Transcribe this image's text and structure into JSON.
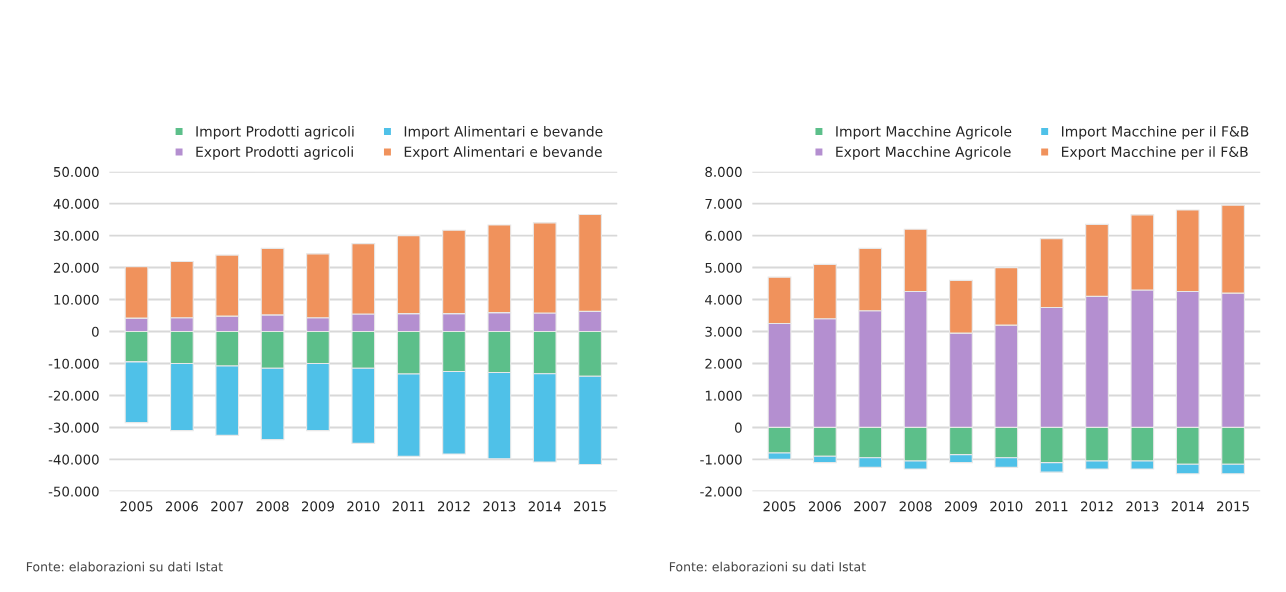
{
  "chart_data": [
    {
      "type": "bar",
      "stacked": true,
      "categories": [
        "2005",
        "2006",
        "2007",
        "2008",
        "2009",
        "2010",
        "2011",
        "2012",
        "2013",
        "2014",
        "2015"
      ],
      "series": [
        {
          "name": "Import Prodotti agricoli",
          "color": "#5cbf8a",
          "values": [
            -9500,
            -10000,
            -10800,
            -11500,
            -10000,
            -11500,
            -13300,
            -12500,
            -12800,
            -13200,
            -14000
          ]
        },
        {
          "name": "Import Alimentari e bevande",
          "color": "#4fc1e8",
          "values": [
            -19000,
            -21000,
            -21700,
            -22300,
            -21000,
            -23500,
            -25700,
            -25800,
            -27000,
            -27600,
            -27600
          ]
        },
        {
          "name": "Export Prodotti agricoli",
          "color": "#b48fd0",
          "values": [
            4200,
            4300,
            4800,
            5200,
            4300,
            5500,
            5600,
            5600,
            5900,
            5800,
            6300
          ]
        },
        {
          "name": "Export Alimentari e bevande",
          "color": "#f0925c",
          "values": [
            16100,
            17600,
            19100,
            20800,
            20000,
            22000,
            24400,
            26100,
            27400,
            28200,
            30300
          ]
        }
      ],
      "ylim": [
        -50000,
        50000
      ],
      "yticks": [
        {
          "value": -50000,
          "label": "-50.000"
        },
        {
          "value": -40000,
          "label": "-40.000"
        },
        {
          "value": -30000,
          "label": "-30.000"
        },
        {
          "value": -20000,
          "label": "-20.000"
        },
        {
          "value": -10000,
          "label": "-10.000"
        },
        0,
        {
          "value": 10000,
          "label": "10.000"
        },
        {
          "value": 20000,
          "label": "20.000"
        },
        {
          "value": 30000,
          "label": "30.000"
        },
        {
          "value": 40000,
          "label": "40.000"
        },
        {
          "value": 50000,
          "label": "50.000"
        }
      ],
      "grid": "y",
      "legend": "top",
      "annotations": [
        "Fonte: elaborazioni su dati Istat"
      ]
    },
    {
      "type": "bar",
      "stacked": true,
      "categories": [
        "2005",
        "2006",
        "2007",
        "2008",
        "2009",
        "2010",
        "2011",
        "2012",
        "2013",
        "2014",
        "2015"
      ],
      "series": [
        {
          "name": "Import Macchine Agricole",
          "color": "#5cbf8a",
          "values": [
            -800,
            -900,
            -950,
            -1050,
            -850,
            -950,
            -1100,
            -1050,
            -1050,
            -1150,
            -1150
          ]
        },
        {
          "name": "Import Macchine per il F&B",
          "color": "#4fc1e8",
          "values": [
            -200,
            -200,
            -300,
            -250,
            -250,
            -300,
            -300,
            -250,
            -250,
            -300,
            -300
          ]
        },
        {
          "name": "Export Macchine Agricole",
          "color": "#b48fd0",
          "values": [
            3250,
            3400,
            3650,
            4250,
            2950,
            3200,
            3750,
            4100,
            4300,
            4250,
            4200
          ]
        },
        {
          "name": "Export Macchine per il F&B",
          "color": "#f0925c",
          "values": [
            1450,
            1700,
            1950,
            1950,
            1650,
            1800,
            2150,
            2250,
            2350,
            2550,
            2750
          ]
        }
      ],
      "ylim": [
        -2000,
        8000
      ],
      "yticks": [
        {
          "value": -2000,
          "label": "-2.000"
        },
        {
          "value": -1000,
          "label": "-1.000"
        },
        0,
        {
          "value": 1000,
          "label": "1.000"
        },
        {
          "value": 2000,
          "label": "2.000"
        },
        {
          "value": 3000,
          "label": "3.000"
        },
        {
          "value": 4000,
          "label": "4.000"
        },
        {
          "value": 5000,
          "label": "5.000"
        },
        {
          "value": 6000,
          "label": "6.000"
        },
        {
          "value": 7000,
          "label": "7.000"
        },
        {
          "value": 8000,
          "label": "8.000"
        }
      ],
      "grid": "y",
      "legend": "top",
      "annotations": [
        "Fonte: elaborazioni su dati Istat"
      ]
    }
  ]
}
